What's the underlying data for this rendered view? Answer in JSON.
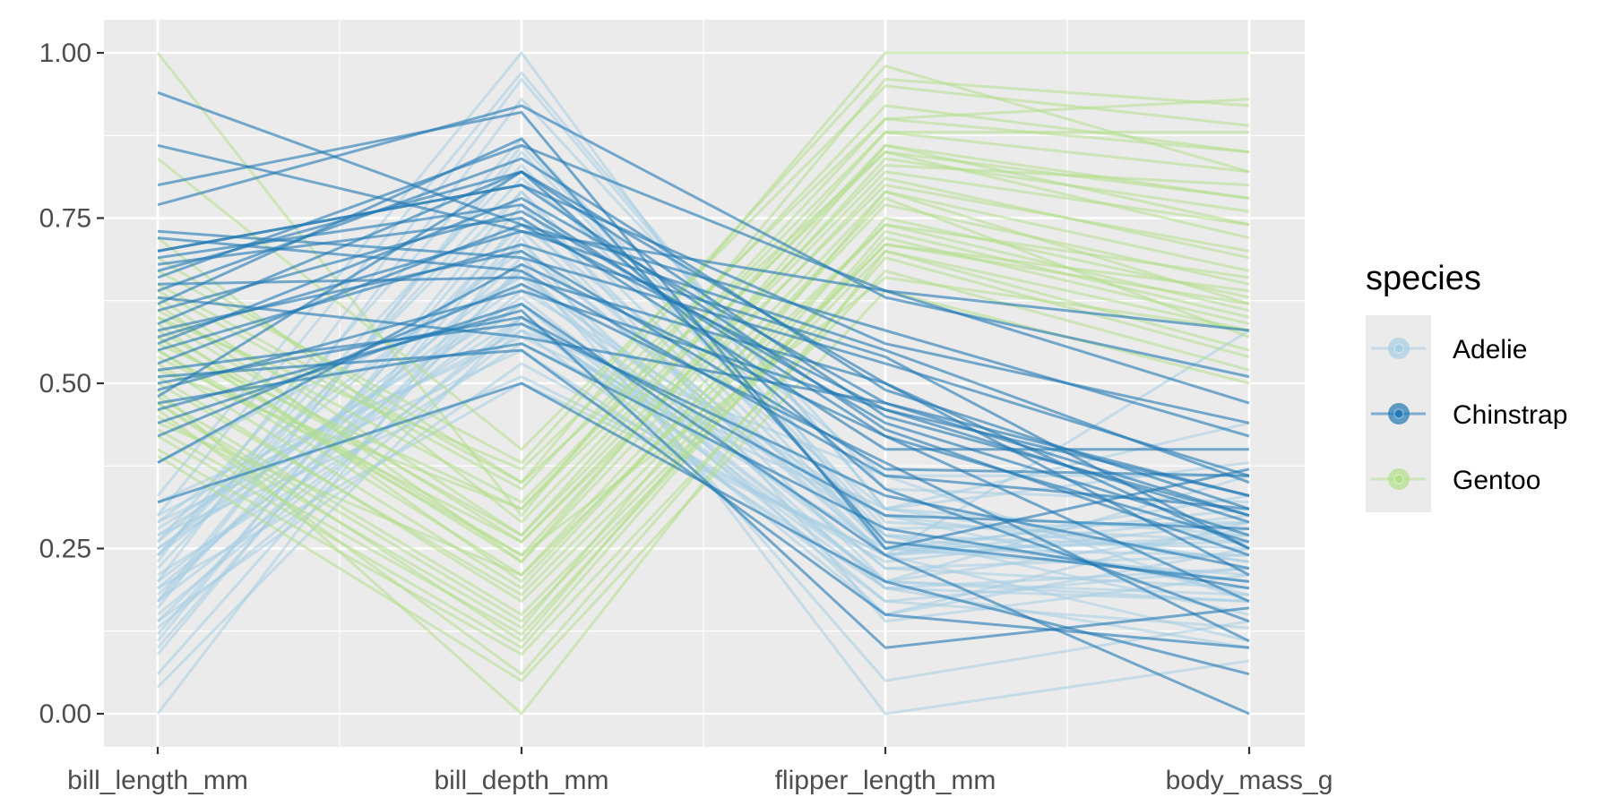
{
  "chart_data": {
    "type": "line",
    "subtype": "parallel-coordinates",
    "title": "",
    "xlabel": "",
    "ylabel": "",
    "categories": [
      "bill_length_mm",
      "bill_depth_mm",
      "flipper_length_mm",
      "body_mass_g"
    ],
    "ylim": [
      0,
      1
    ],
    "y_ticks": [
      "0.00",
      "0.25",
      "0.50",
      "0.75",
      "1.00"
    ],
    "y_tick_values": [
      0,
      0.25,
      0.5,
      0.75,
      1
    ],
    "grid": true,
    "legend": {
      "title": "species",
      "position": "right",
      "entries": [
        "Adelie",
        "Chinstrap",
        "Gentoo"
      ]
    },
    "series": [
      {
        "group": "Adelie",
        "color": "#a6cee3",
        "lines": [
          [
            0.25,
            0.6,
            0.15,
            0.29
          ],
          [
            0.27,
            0.51,
            0.24,
            0.3
          ],
          [
            0.3,
            0.58,
            0.36,
            0.17
          ],
          [
            0.17,
            0.74,
            0.31,
            0.23
          ],
          [
            0.26,
            0.87,
            0.29,
            0.26
          ],
          [
            0.24,
            0.67,
            0.15,
            0.25
          ],
          [
            0.26,
            0.71,
            0.24,
            0.58
          ],
          [
            0.15,
            0.6,
            0.2,
            0.17
          ],
          [
            0.14,
            0.67,
            0.22,
            0.24
          ],
          [
            0.09,
            0.75,
            0.2,
            0.18
          ],
          [
            0.2,
            0.62,
            0.17,
            0.22
          ],
          [
            0.2,
            0.93,
            0.34,
            0.32
          ],
          [
            0.3,
            0.97,
            0.31,
            0.44
          ],
          [
            0.12,
            0.77,
            0.24,
            0.33
          ],
          [
            0.17,
            0.59,
            0.25,
            0.24
          ],
          [
            0.19,
            0.5,
            0.24,
            0.27
          ],
          [
            0.24,
            0.83,
            0.25,
            0.26
          ],
          [
            0.25,
            0.65,
            0.22,
            0.19
          ],
          [
            0.18,
            0.69,
            0.19,
            0.17
          ],
          [
            0.27,
            0.63,
            0.2,
            0.28
          ],
          [
            0.06,
            0.68,
            0.05,
            0.14
          ],
          [
            0.22,
            0.81,
            0.36,
            0.36
          ],
          [
            0.29,
            0.7,
            0.27,
            0.15
          ],
          [
            0.32,
            0.57,
            0.31,
            0.38
          ],
          [
            0.16,
            0.86,
            0.28,
            0.29
          ],
          [
            0.21,
            0.56,
            0.3,
            0.23
          ],
          [
            0.04,
            0.6,
            0.19,
            0.1
          ],
          [
            0.11,
            0.79,
            0.14,
            0.21
          ],
          [
            0.33,
            1.0,
            0.25,
            0.31
          ],
          [
            0.19,
            0.64,
            0.3,
            0.18
          ],
          [
            0.29,
            0.55,
            0.19,
            0.22
          ],
          [
            0.0,
            0.72,
            0.0,
            0.08
          ],
          [
            0.14,
            0.53,
            0.23,
            0.29
          ],
          [
            0.23,
            0.96,
            0.31,
            0.27
          ],
          [
            0.38,
            0.66,
            0.27,
            0.25
          ],
          [
            0.1,
            0.73,
            0.24,
            0.11
          ],
          [
            0.17,
            0.85,
            0.27,
            0.2
          ],
          [
            0.28,
            0.62,
            0.2,
            0.36
          ],
          [
            0.13,
            0.58,
            0.17,
            0.13
          ],
          [
            0.24,
            0.79,
            0.25,
            0.21
          ]
        ]
      },
      {
        "group": "Gentoo",
        "color": "#b2df8a",
        "lines": [
          [
            0.55,
            0.24,
            0.66,
            0.58
          ],
          [
            0.45,
            0.13,
            0.79,
            0.67
          ],
          [
            0.65,
            0.35,
            0.85,
            0.78
          ],
          [
            0.42,
            0.1,
            0.73,
            0.6
          ],
          [
            0.58,
            0.27,
            0.88,
            0.88
          ],
          [
            0.51,
            0.17,
            0.71,
            0.64
          ],
          [
            0.6,
            0.26,
            0.82,
            0.74
          ],
          [
            0.47,
            0.11,
            0.75,
            0.63
          ],
          [
            1.0,
            0.3,
            0.96,
            0.92
          ],
          [
            0.62,
            0.23,
            0.86,
            0.74
          ],
          [
            0.53,
            0.19,
            0.78,
            0.57
          ],
          [
            0.56,
            0.31,
            0.9,
            0.85
          ],
          [
            0.49,
            0.0,
            0.7,
            0.55
          ],
          [
            0.67,
            0.38,
            0.98,
            0.82
          ],
          [
            0.44,
            0.21,
            0.74,
            0.61
          ],
          [
            0.57,
            0.23,
            0.81,
            0.69
          ],
          [
            0.84,
            0.4,
            0.95,
            0.89
          ],
          [
            0.4,
            0.09,
            0.67,
            0.52
          ],
          [
            0.63,
            0.27,
            0.83,
            0.8
          ],
          [
            0.48,
            0.15,
            0.71,
            0.62
          ],
          [
            0.52,
            0.31,
            0.85,
            0.72
          ],
          [
            0.59,
            0.2,
            0.77,
            0.65
          ],
          [
            0.69,
            0.35,
            1.0,
            1.0
          ],
          [
            0.46,
            0.06,
            0.69,
            0.54
          ],
          [
            0.54,
            0.26,
            0.8,
            0.7
          ],
          [
            0.61,
            0.32,
            0.88,
            0.82
          ],
          [
            0.43,
            0.12,
            0.72,
            0.59
          ],
          [
            0.57,
            0.24,
            0.84,
            0.76
          ],
          [
            0.5,
            0.18,
            0.74,
            0.66
          ],
          [
            0.64,
            0.34,
            0.92,
            0.85
          ],
          [
            0.72,
            0.29,
            0.86,
            0.78
          ],
          [
            0.39,
            0.05,
            0.64,
            0.5
          ],
          [
            0.55,
            0.21,
            0.79,
            0.62
          ],
          [
            0.6,
            0.37,
            0.9,
            0.93
          ],
          [
            0.47,
            0.14,
            0.7,
            0.58
          ]
        ]
      },
      {
        "group": "Chinstrap",
        "color": "#1f78b4",
        "lines": [
          [
            0.94,
            0.74,
            0.46,
            0.33
          ],
          [
            0.8,
            0.91,
            0.25,
            0.37
          ],
          [
            0.86,
            0.73,
            0.64,
            0.58
          ],
          [
            0.55,
            0.71,
            0.54,
            0.25
          ],
          [
            0.48,
            0.82,
            0.34,
            0.14
          ],
          [
            0.53,
            0.74,
            0.58,
            0.42
          ],
          [
            0.72,
            0.67,
            0.36,
            0.31
          ],
          [
            0.63,
            0.57,
            0.47,
            0.33
          ],
          [
            0.42,
            0.65,
            0.38,
            0.11
          ],
          [
            0.67,
            0.82,
            0.5,
            0.21
          ],
          [
            0.5,
            0.6,
            0.3,
            0.28
          ],
          [
            0.69,
            0.77,
            0.42,
            0.26
          ],
          [
            0.51,
            0.55,
            0.15,
            0.1
          ],
          [
            0.66,
            0.86,
            0.64,
            0.47
          ],
          [
            0.38,
            0.68,
            0.42,
            0.17
          ],
          [
            0.58,
            0.7,
            0.37,
            0.36
          ],
          [
            0.7,
            0.8,
            0.56,
            0.44
          ],
          [
            0.46,
            0.61,
            0.1,
            0.16
          ],
          [
            0.65,
            0.66,
            0.5,
            0.25
          ],
          [
            0.56,
            0.78,
            0.47,
            0.3
          ],
          [
            0.62,
            0.87,
            0.26,
            0.2
          ],
          [
            0.49,
            0.64,
            0.46,
            0.29
          ],
          [
            0.68,
            0.75,
            0.4,
            0.4
          ],
          [
            0.77,
            0.92,
            0.63,
            0.51
          ],
          [
            0.32,
            0.5,
            0.2,
            0.06
          ],
          [
            0.59,
            0.82,
            0.45,
            0.3
          ],
          [
            0.73,
            0.69,
            0.53,
            0.36
          ],
          [
            0.52,
            0.59,
            0.33,
            0.22
          ],
          [
            0.61,
            0.76,
            0.44,
            0.27
          ],
          [
            0.44,
            0.62,
            0.24,
            0.0
          ],
          [
            0.57,
            0.73,
            0.55,
            0.35
          ],
          [
            0.7,
            0.8,
            0.43,
            0.24
          ],
          [
            0.47,
            0.56,
            0.28,
            0.19
          ],
          [
            0.64,
            0.84,
            0.49,
            0.31
          ]
        ]
      }
    ]
  }
}
